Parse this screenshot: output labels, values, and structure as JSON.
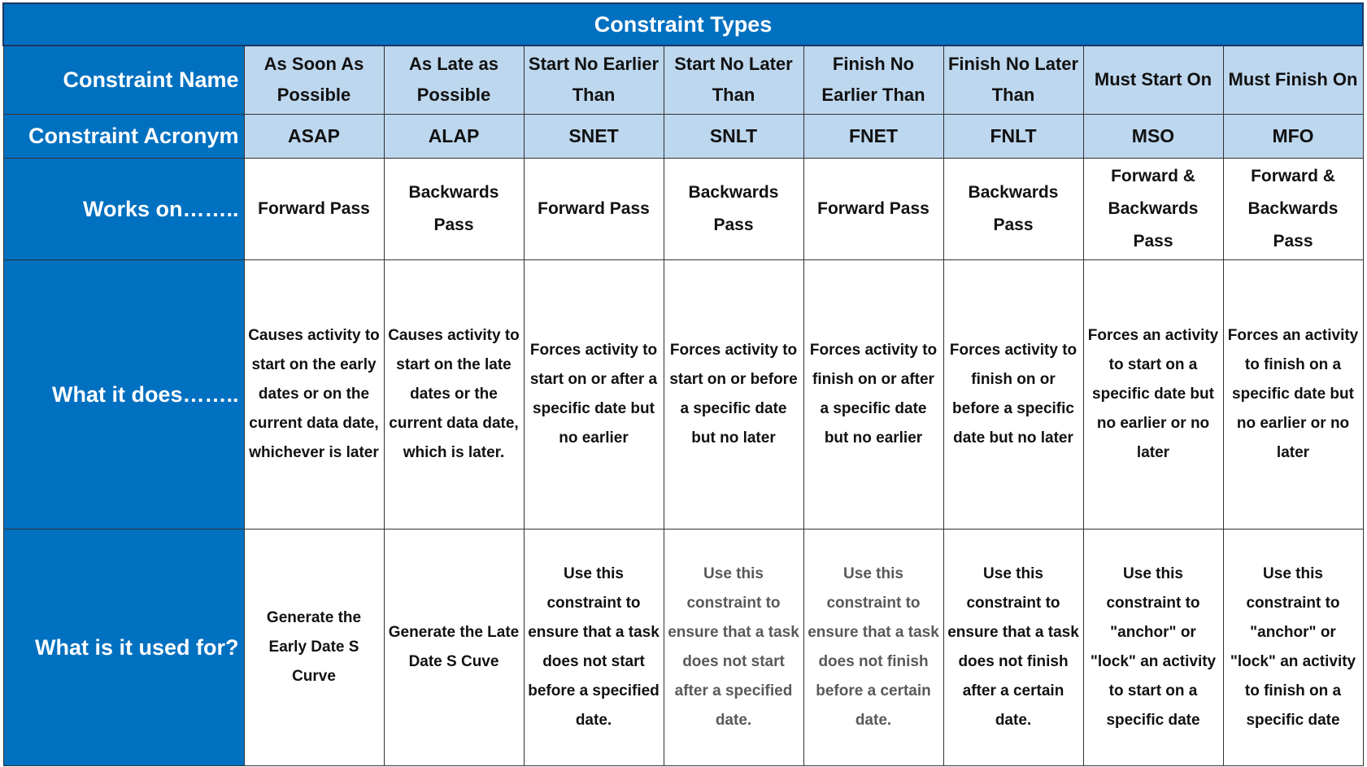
{
  "title": "Constraint Types",
  "rows": [
    {
      "label": "Constraint Name",
      "cells": [
        "As Soon As Possible",
        "As Late as Possible",
        "Start No Earlier Than",
        "Start No Later Than",
        "Finish No Earlier Than",
        "Finish No Later Than",
        "Must Start On",
        "Must Finish On"
      ]
    },
    {
      "label": "Constraint Acronym",
      "cells": [
        "ASAP",
        "ALAP",
        "SNET",
        "SNLT",
        "FNET",
        "FNLT",
        "MSO",
        "MFO"
      ]
    },
    {
      "label": "Works on……..",
      "cells": [
        "Forward Pass",
        "Backwards Pass",
        "Forward Pass",
        "Backwards Pass",
        "Forward Pass",
        "Backwards Pass",
        "Forward & Backwards Pass",
        "Forward & Backwards Pass"
      ]
    },
    {
      "label": "What it does……..",
      "cells": [
        "Causes activity to start on the early dates or on the current data date, whichever is later",
        "Causes activity to start on the late dates or the current data date, which is later.",
        "Forces activity to start on or after a specific date but no earlier",
        "Forces activity to start on or before a specific date but no later",
        "Forces activity to finish on or after a specific date but no earlier",
        "Forces activity to finish on or before a specific date but no later",
        "Forces an activity to start on a specific date but no earlier or no later",
        "Forces an activity to finish on a specific date but no earlier or no later"
      ]
    },
    {
      "label": "What is it used for?",
      "cells": [
        "Generate the Early Date S Curve",
        "Generate the Late Date S Cuve",
        "Use this constraint to ensure that a task does not start before a specified date.",
        "Use this constraint to ensure that a task does not start after a specified date.",
        "Use this constraint to ensure that a task does not finish before a certain date.",
        "Use this constraint to ensure that a task does not finish after a certain date.",
        "Use this constraint to \"anchor\" or \"lock\" an activity to start on a specific date",
        "Use this constraint to \"anchor\" or \"lock\" an activity to finish on a specific date"
      ]
    }
  ]
}
